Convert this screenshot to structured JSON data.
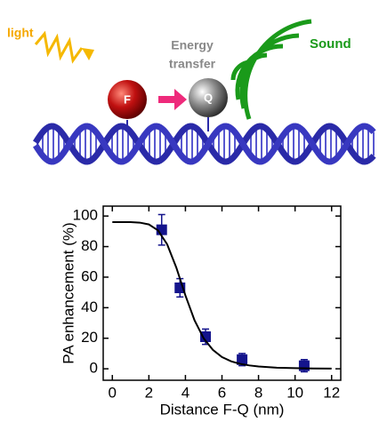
{
  "diagram": {
    "light": "light",
    "energy": "Energy",
    "transfer": "transfer",
    "sound": "Sound",
    "fluorophore": "F",
    "quencher": "Q"
  },
  "chart_data": {
    "type": "scatter",
    "xlabel": "Distance F-Q (nm)",
    "ylabel": "PA enhancement (%)",
    "xlim": [
      -0.5,
      12.5
    ],
    "ylim": [
      -7.5,
      106.5
    ],
    "xticks": [
      0,
      2,
      4,
      6,
      8,
      10,
      12
    ],
    "yticks": [
      0,
      20,
      40,
      60,
      80,
      100
    ],
    "series": [
      {
        "type": "scatter",
        "color": "#14148c",
        "x": [
          2.7,
          3.7,
          5.1,
          7.1,
          10.5
        ],
        "values": [
          91,
          53,
          21,
          6,
          2
        ],
        "errors": [
          10,
          6,
          5,
          4,
          4
        ]
      },
      {
        "type": "line",
        "color": "#000000",
        "x": [
          0,
          0.5,
          1,
          1.5,
          2,
          2.5,
          3,
          3.5,
          4,
          4.5,
          5,
          5.5,
          6,
          6.5,
          7,
          7.5,
          8,
          9,
          10,
          11,
          12
        ],
        "values": [
          96,
          96,
          96,
          95.7,
          94.5,
          90.6,
          81.5,
          66.3,
          48,
          31.7,
          19.9,
          12.4,
          7.7,
          4.9,
          3.2,
          2.2,
          1.5,
          0.7,
          0.4,
          0.2,
          0.1
        ]
      }
    ]
  }
}
